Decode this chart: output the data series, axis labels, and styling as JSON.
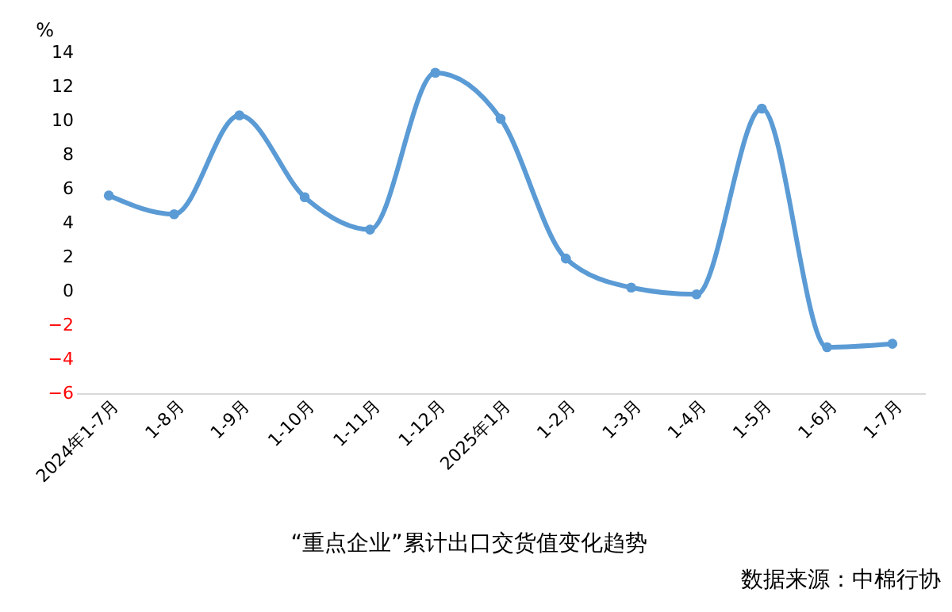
{
  "chart_data": {
    "type": "line",
    "title": "“重点企业”累计出口交货值变化趋势",
    "ylabel": "%",
    "categories": [
      "2024年1-7月",
      "1-8月",
      "1-9月",
      "1-10月",
      "1-11月",
      "1-12月",
      "2025年1月",
      "1-2月",
      "1-3月",
      "1-4月",
      "1-5月",
      "1-6月",
      "1-7月"
    ],
    "series": [
      {
        "color": "#5b9bd5",
        "values": [
          5.6,
          4.5,
          10.3,
          5.5,
          3.6,
          12.8,
          10.1,
          1.9,
          0.2,
          -0.2,
          10.7,
          -3.3,
          -3.1
        ]
      }
    ],
    "ylim": [
      -6,
      14
    ],
    "yticks": [
      -6,
      -4,
      -2,
      0,
      2,
      4,
      6,
      8,
      10,
      12,
      14
    ],
    "grid": false,
    "marker": "circle",
    "line_style": "solid",
    "annotations": [
      "数据来源：中棉行协"
    ]
  }
}
